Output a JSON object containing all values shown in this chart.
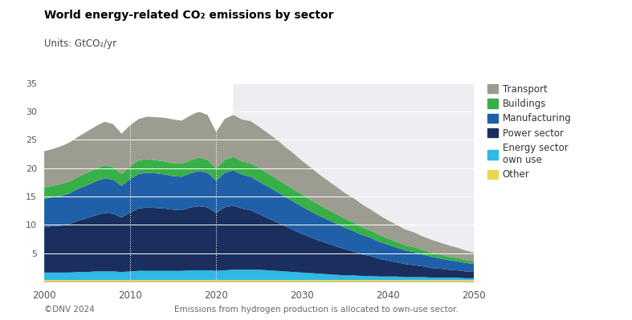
{
  "title": "World energy-related CO₂ emissions by sector",
  "units_label": "Units: GtCO₂/yr",
  "footnote": "Emissions from hydrogen production is allocated to own-use sector.",
  "copyright": "©DNV 2024",
  "years": [
    2000,
    2001,
    2002,
    2003,
    2004,
    2005,
    2006,
    2007,
    2008,
    2009,
    2010,
    2011,
    2012,
    2013,
    2014,
    2015,
    2016,
    2017,
    2018,
    2019,
    2020,
    2021,
    2022,
    2023,
    2024,
    2025,
    2026,
    2027,
    2028,
    2029,
    2030,
    2031,
    2032,
    2033,
    2034,
    2035,
    2036,
    2037,
    2038,
    2039,
    2040,
    2041,
    2042,
    2043,
    2044,
    2045,
    2046,
    2047,
    2048,
    2049,
    2050
  ],
  "other": [
    0.3,
    0.3,
    0.3,
    0.3,
    0.3,
    0.3,
    0.3,
    0.3,
    0.3,
    0.3,
    0.3,
    0.3,
    0.3,
    0.3,
    0.3,
    0.3,
    0.3,
    0.3,
    0.3,
    0.3,
    0.3,
    0.3,
    0.3,
    0.3,
    0.3,
    0.3,
    0.3,
    0.3,
    0.3,
    0.3,
    0.3,
    0.3,
    0.3,
    0.3,
    0.3,
    0.3,
    0.3,
    0.3,
    0.3,
    0.3,
    0.3,
    0.3,
    0.3,
    0.3,
    0.3,
    0.3,
    0.3,
    0.3,
    0.3,
    0.3,
    0.3
  ],
  "energy_own_use": [
    1.3,
    1.3,
    1.3,
    1.3,
    1.4,
    1.4,
    1.5,
    1.5,
    1.5,
    1.4,
    1.5,
    1.6,
    1.6,
    1.6,
    1.6,
    1.6,
    1.6,
    1.7,
    1.7,
    1.7,
    1.6,
    1.7,
    1.8,
    1.8,
    1.8,
    1.8,
    1.7,
    1.6,
    1.5,
    1.4,
    1.3,
    1.2,
    1.1,
    1.0,
    0.9,
    0.8,
    0.8,
    0.7,
    0.7,
    0.6,
    0.6,
    0.6,
    0.5,
    0.5,
    0.5,
    0.4,
    0.4,
    0.4,
    0.4,
    0.3,
    0.3
  ],
  "power_sector": [
    8.0,
    8.2,
    8.3,
    8.6,
    9.1,
    9.5,
    9.9,
    10.3,
    10.2,
    9.6,
    10.4,
    11.0,
    11.2,
    11.1,
    11.0,
    10.8,
    10.7,
    11.1,
    11.3,
    11.1,
    10.2,
    11.1,
    11.3,
    10.8,
    10.5,
    9.8,
    9.2,
    8.6,
    8.0,
    7.4,
    6.8,
    6.3,
    5.8,
    5.4,
    5.0,
    4.6,
    4.2,
    3.8,
    3.5,
    3.1,
    2.8,
    2.5,
    2.3,
    2.1,
    1.9,
    1.7,
    1.6,
    1.4,
    1.3,
    1.2,
    1.1
  ],
  "manufacturing": [
    5.0,
    5.1,
    5.2,
    5.4,
    5.6,
    5.8,
    6.0,
    6.1,
    6.0,
    5.6,
    5.9,
    6.1,
    6.1,
    6.1,
    6.0,
    5.9,
    5.9,
    6.0,
    6.2,
    6.1,
    5.7,
    6.1,
    6.2,
    6.0,
    5.9,
    5.7,
    5.6,
    5.4,
    5.2,
    5.0,
    4.8,
    4.6,
    4.4,
    4.2,
    4.0,
    3.8,
    3.6,
    3.4,
    3.2,
    3.0,
    2.8,
    2.6,
    2.4,
    2.3,
    2.1,
    2.0,
    1.8,
    1.7,
    1.6,
    1.5,
    1.4
  ],
  "buildings": [
    2.0,
    2.0,
    2.1,
    2.1,
    2.1,
    2.2,
    2.2,
    2.3,
    2.2,
    2.1,
    2.3,
    2.4,
    2.4,
    2.3,
    2.3,
    2.3,
    2.3,
    2.3,
    2.4,
    2.3,
    2.2,
    2.3,
    2.4,
    2.3,
    2.4,
    2.4,
    2.3,
    2.3,
    2.2,
    2.2,
    2.1,
    2.0,
    1.9,
    1.8,
    1.7,
    1.6,
    1.5,
    1.4,
    1.3,
    1.2,
    1.1,
    1.0,
    0.9,
    0.9,
    0.8,
    0.7,
    0.7,
    0.6,
    0.6,
    0.5,
    0.5
  ],
  "transport": [
    6.4,
    6.5,
    6.7,
    6.9,
    7.1,
    7.3,
    7.5,
    7.7,
    7.6,
    7.1,
    7.2,
    7.3,
    7.5,
    7.6,
    7.7,
    7.7,
    7.6,
    7.9,
    8.1,
    7.9,
    6.4,
    7.2,
    7.4,
    7.4,
    7.4,
    7.3,
    7.1,
    6.9,
    6.6,
    6.3,
    6.0,
    5.7,
    5.4,
    5.1,
    4.8,
    4.5,
    4.3,
    4.0,
    3.7,
    3.5,
    3.2,
    3.0,
    2.8,
    2.6,
    2.4,
    2.3,
    2.1,
    2.0,
    1.8,
    1.7,
    1.5
  ],
  "colors": {
    "other": "#e8d84a",
    "energy_own_use": "#2eb8e6",
    "power_sector": "#1a2f5e",
    "manufacturing": "#2060a8",
    "buildings": "#38b048",
    "transport": "#9c9c90"
  },
  "legend_labels": [
    "Transport",
    "Buildings",
    "Manufacturing",
    "Power sector",
    "Energy sector\nown use",
    "Other"
  ],
  "legend_colors": [
    "#9c9c90",
    "#38b048",
    "#2060a8",
    "#1a2f5e",
    "#2eb8e6",
    "#e8d84a"
  ],
  "ylim": [
    0,
    35
  ],
  "yticks": [
    0,
    5,
    10,
    15,
    20,
    25,
    30,
    35
  ],
  "xlim": [
    2000,
    2050
  ],
  "xticks": [
    2000,
    2010,
    2020,
    2030,
    2040,
    2050
  ],
  "shaded_region_start": 2022,
  "shaded_region_color": "#c8c8d4",
  "shaded_alpha": 0.3
}
